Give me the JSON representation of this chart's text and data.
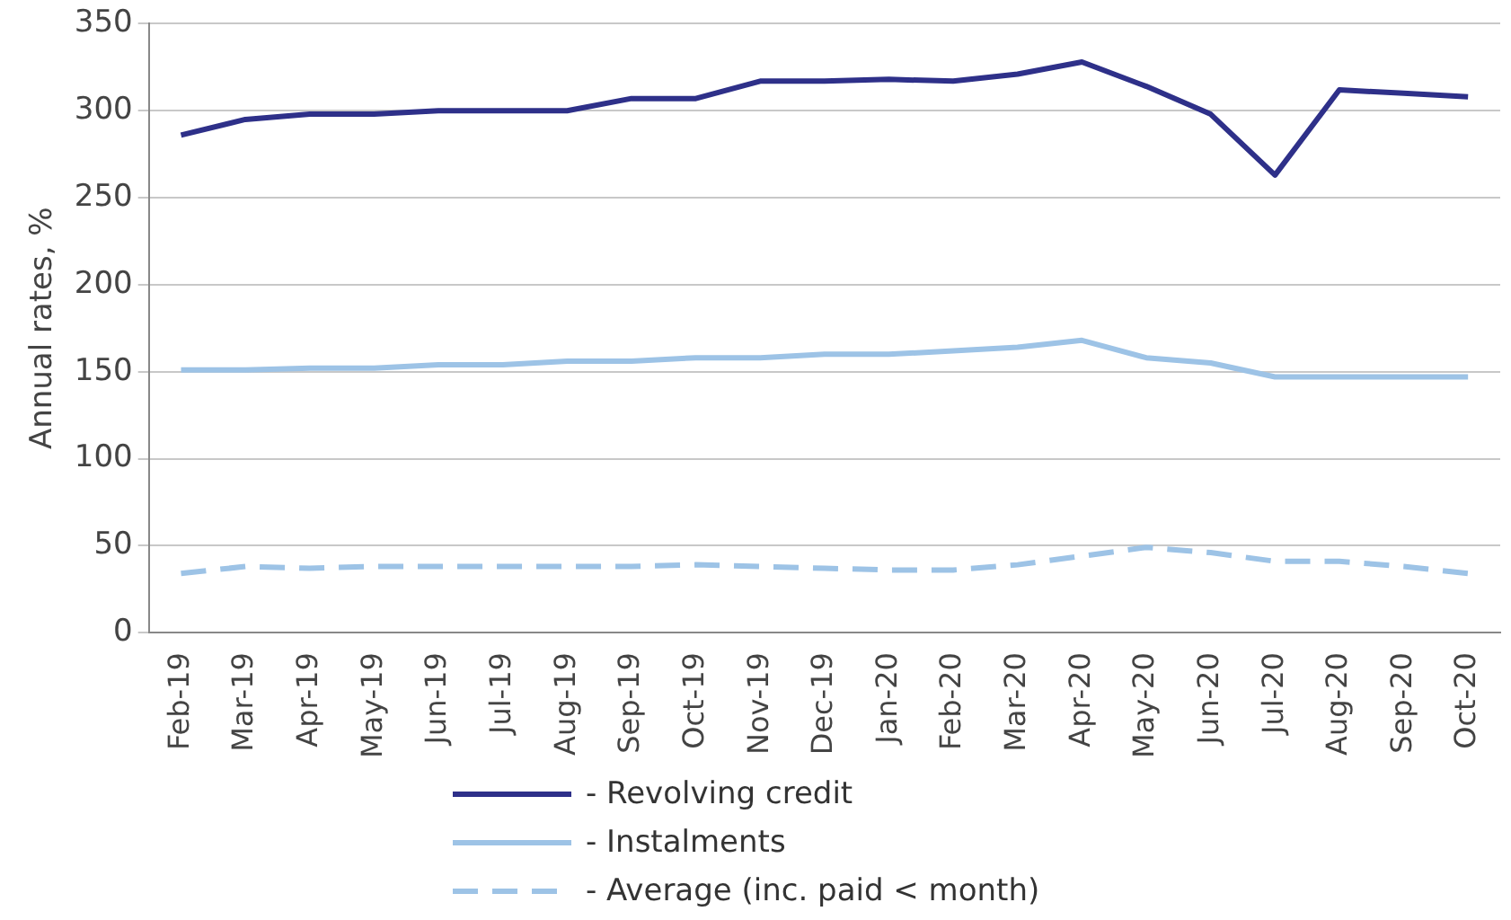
{
  "chart_data": {
    "type": "line",
    "ylabel": "Annual rates, %",
    "categories": [
      "Feb-19",
      "Mar-19",
      "Apr-19",
      "May-19",
      "Jun-19",
      "Jul-19",
      "Aug-19",
      "Sep-19",
      "Oct-19",
      "Nov-19",
      "Dec-19",
      "Jan-20",
      "Feb-20",
      "Mar-20",
      "Apr-20",
      "May-20",
      "Jun-20",
      "Jul-20",
      "Aug-20",
      "Sep-20",
      "Oct-20"
    ],
    "series": [
      {
        "name": "- Revolving credit",
        "color": "#2e3089",
        "values": [
          286,
          295,
          298,
          298,
          300,
          300,
          300,
          307,
          307,
          317,
          317,
          318,
          317,
          321,
          328,
          314,
          298,
          263,
          312,
          310,
          308
        ]
      },
      {
        "name": "- Instalments",
        "color": "#9dc3e6",
        "values": [
          151,
          151,
          152,
          152,
          154,
          154,
          156,
          156,
          158,
          158,
          160,
          160,
          162,
          164,
          168,
          158,
          155,
          147,
          147,
          147,
          147
        ]
      },
      {
        "name": "- Average (inc. paid < month)",
        "color": "#9dc3e6",
        "line_style": "dashed",
        "values": [
          34,
          38,
          37,
          38,
          38,
          38,
          38,
          38,
          39,
          38,
          37,
          36,
          36,
          39,
          44,
          49,
          46,
          41,
          41,
          38,
          34
        ]
      }
    ],
    "ylim": [
      0,
      350
    ],
    "yticks": [
      0,
      50,
      100,
      150,
      200,
      250,
      300,
      350
    ],
    "grid": "y",
    "legend": "bottom",
    "marker": "none"
  }
}
